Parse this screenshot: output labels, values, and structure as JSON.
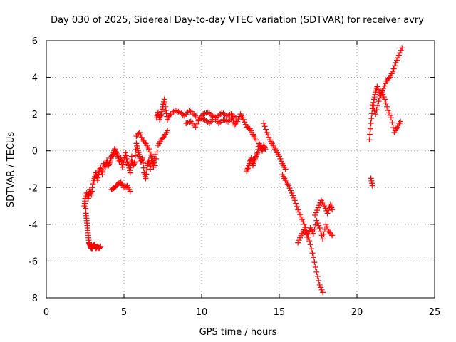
{
  "chart_data": {
    "type": "scatter",
    "title": "Day 030 of 2025, Sidereal Day-to-day VTEC variation (SDTVAR) for receiver avry",
    "xlabel": "GPS time / hours",
    "ylabel": "SDTVAR / TECUs",
    "xlim": [
      0,
      25
    ],
    "ylim": [
      -8,
      6
    ],
    "xticks": [
      0,
      5,
      10,
      15,
      20,
      25
    ],
    "yticks": [
      -8,
      -6,
      -4,
      -2,
      0,
      2,
      4,
      6
    ],
    "grid": true,
    "marker": "+",
    "marker_color": "#ff0000",
    "series": [
      {
        "name": "SDTVAR",
        "x": [
          2.45,
          2.5,
          2.55,
          2.6,
          2.65,
          2.7,
          2.75,
          2.8,
          2.85,
          2.9,
          2.95,
          3.0,
          3.1,
          3.2,
          3.3,
          3.4,
          3.5,
          2.5,
          2.6,
          2.7,
          2.8,
          2.9,
          3.0,
          3.1,
          3.2,
          3.3,
          3.4,
          3.5,
          3.6,
          3.7,
          3.8,
          3.9,
          4.0,
          4.1,
          4.2,
          4.3,
          4.4,
          4.5,
          4.6,
          4.7,
          4.8,
          4.9,
          5.0,
          5.1,
          5.2,
          5.3,
          5.4,
          5.5,
          4.2,
          4.4,
          4.6,
          4.8,
          5.0,
          5.2,
          5.4,
          5.5,
          5.6,
          5.7,
          5.8,
          5.9,
          6.0,
          6.1,
          6.2,
          6.3,
          6.4,
          6.5,
          6.6,
          6.7,
          6.8,
          6.9,
          7.0,
          5.8,
          6.0,
          6.2,
          6.4,
          6.6,
          6.8,
          7.0,
          7.2,
          7.4,
          7.6,
          7.8,
          7.1,
          7.2,
          7.3,
          7.4,
          7.5,
          7.6,
          7.7,
          7.8,
          8.0,
          8.3,
          8.6,
          8.9,
          9.2,
          9.5,
          9.8,
          10.1,
          10.4,
          10.7,
          11.0,
          11.3,
          11.6,
          11.9,
          12.2,
          9.0,
          9.3,
          9.6,
          9.9,
          10.2,
          10.5,
          10.8,
          11.1,
          11.4,
          11.7,
          12.0,
          12.1,
          12.3,
          12.5,
          12.7,
          12.9,
          13.1,
          13.3,
          13.5,
          12.9,
          13.0,
          13.1,
          13.2,
          13.3,
          13.4,
          13.5,
          13.6,
          13.7,
          13.8,
          13.9,
          14.0,
          14.1,
          14.0,
          14.2,
          14.4,
          14.6,
          14.8,
          15.0,
          15.2,
          15.4,
          15.2,
          15.4,
          15.6,
          15.8,
          16.0,
          16.2,
          16.4,
          16.6,
          16.8,
          17.0,
          17.2,
          17.4,
          17.6,
          17.8,
          16.2,
          16.4,
          16.6,
          16.8,
          17.0,
          17.2,
          17.4,
          17.6,
          17.8,
          18.0,
          18.2,
          18.4,
          17.3,
          17.5,
          17.7,
          17.9,
          18.1,
          18.3,
          18.4,
          20.8,
          20.9,
          21.0,
          21.1,
          21.2,
          21.3,
          21.5,
          21.7,
          21.9,
          22.1,
          22.3,
          22.5,
          22.7,
          22.9,
          21.0,
          21.2,
          21.4,
          21.6,
          21.8,
          22.0,
          22.2,
          22.4,
          22.6,
          22.8,
          20.9,
          21.0
        ],
        "y": [
          -3.0,
          -2.6,
          -3.4,
          -3.8,
          -4.2,
          -4.6,
          -5.0,
          -5.1,
          -5.2,
          -5.3,
          -5.3,
          -5.2,
          -5.1,
          -5.3,
          -5.2,
          -5.3,
          -5.2,
          -2.6,
          -2.3,
          -2.6,
          -2.1,
          -2.4,
          -1.8,
          -1.5,
          -1.2,
          -1.6,
          -1.1,
          -0.9,
          -1.3,
          -0.7,
          -0.9,
          -0.5,
          -0.8,
          -0.6,
          -0.3,
          -0.2,
          0.1,
          -0.1,
          -0.3,
          -0.6,
          -0.4,
          -0.9,
          -0.5,
          -0.1,
          -0.6,
          -0.8,
          -1.2,
          -0.3,
          -2.1,
          -2.0,
          -1.8,
          -1.7,
          -2.0,
          -1.9,
          -2.2,
          -0.5,
          -0.8,
          -0.6,
          0.4,
          0.0,
          -0.3,
          -0.6,
          -0.4,
          -1.2,
          -1.5,
          -0.8,
          -0.5,
          -1.0,
          -0.3,
          -0.9,
          -0.2,
          0.8,
          1.0,
          0.6,
          0.4,
          0.1,
          -0.4,
          -0.8,
          0.3,
          0.6,
          0.8,
          1.1,
          1.8,
          2.1,
          1.7,
          2.0,
          2.4,
          2.8,
          2.2,
          1.7,
          2.0,
          2.2,
          2.1,
          1.9,
          2.2,
          2.0,
          1.7,
          2.0,
          2.1,
          1.9,
          1.8,
          2.1,
          1.9,
          2.0,
          1.8,
          1.5,
          1.6,
          1.3,
          1.8,
          1.7,
          1.5,
          1.8,
          1.5,
          1.7,
          1.6,
          1.8,
          1.4,
          1.6,
          2.0,
          1.7,
          1.3,
          1.2,
          0.9,
          0.6,
          -1.1,
          -0.9,
          -0.6,
          -0.4,
          -0.8,
          -0.5,
          -0.3,
          -0.1,
          0.4,
          0.2,
          0.0,
          0.3,
          0.1,
          1.5,
          1.0,
          0.6,
          0.3,
          0.0,
          -0.3,
          -0.7,
          -1.0,
          -1.3,
          -1.6,
          -1.9,
          -2.3,
          -2.7,
          -3.2,
          -3.6,
          -4.0,
          -4.5,
          -5.1,
          -5.8,
          -6.6,
          -7.3,
          -7.7,
          -5.0,
          -4.6,
          -4.3,
          -4.7,
          -4.2,
          -4.5,
          -3.8,
          -4.2,
          -4.8,
          -4.0,
          -4.4,
          -4.6,
          -3.5,
          -3.1,
          -2.7,
          -3.0,
          -3.4,
          -2.9,
          -3.2,
          0.6,
          1.5,
          2.3,
          2.8,
          3.2,
          3.5,
          3.0,
          3.4,
          3.8,
          4.0,
          4.3,
          4.8,
          5.2,
          5.6,
          2.5,
          2.0,
          2.7,
          3.2,
          2.8,
          2.2,
          1.8,
          1.0,
          1.3,
          1.6,
          -1.5,
          -1.9
        ]
      }
    ]
  }
}
